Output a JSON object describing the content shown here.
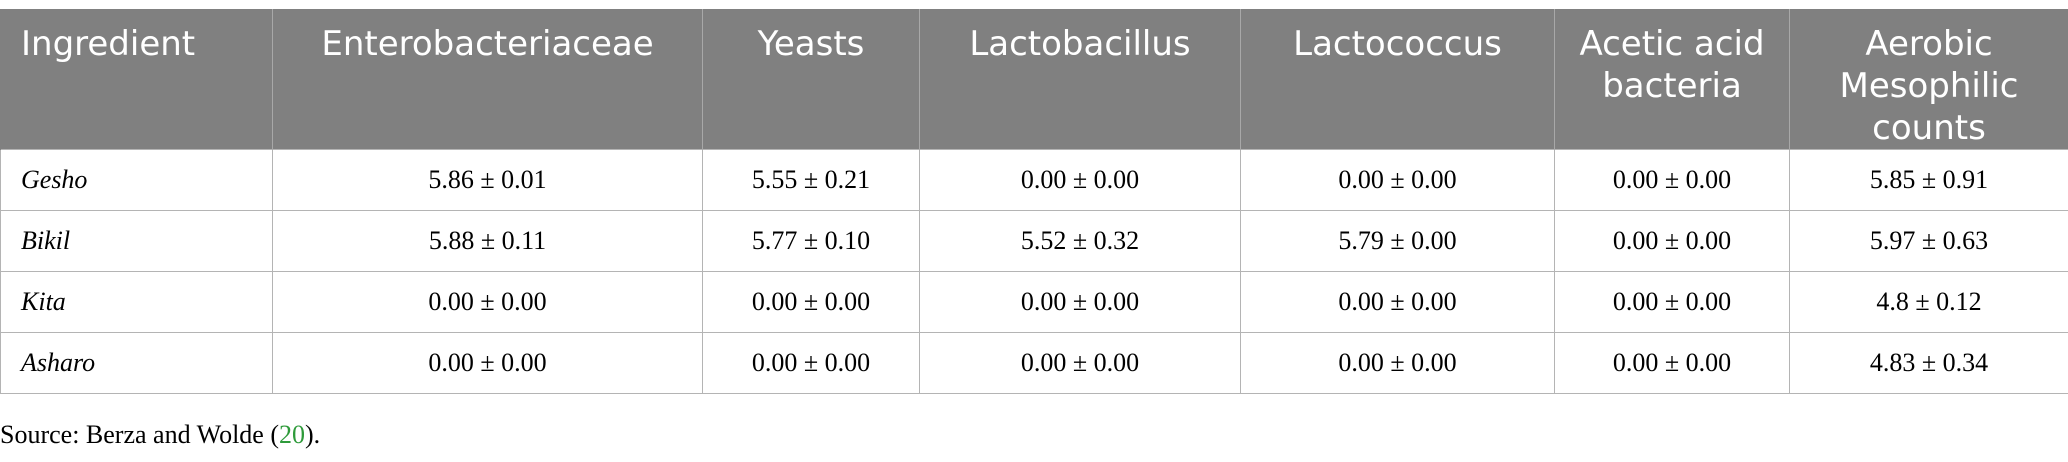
{
  "table": {
    "headers": [
      "Ingredient",
      "Enterobacteriaceae",
      "Yeasts",
      "Lactobacillus",
      "Lactococcus",
      "Acetic acid bacteria",
      "Aerobic Mesophilic counts"
    ],
    "rows": [
      [
        "Gesho",
        "5.86 ± 0.01",
        "5.55 ± 0.21",
        "0.00 ± 0.00",
        "0.00 ± 0.00",
        "0.00 ± 0.00",
        "5.85 ± 0.91"
      ],
      [
        "Bikil",
        "5.88 ± 0.11",
        "5.77 ± 0.10",
        "5.52 ± 0.32",
        "5.79 ± 0.00",
        "0.00 ± 0.00",
        "5.97 ± 0.63"
      ],
      [
        "Kita",
        "0.00 ± 0.00",
        "0.00 ± 0.00",
        "0.00 ± 0.00",
        "0.00 ± 0.00",
        "0.00 ± 0.00",
        "4.8 ± 0.12"
      ],
      [
        "Asharo",
        "0.00 ± 0.00",
        "0.00 ± 0.00",
        "0.00 ± 0.00",
        "0.00 ± 0.00",
        "0.00 ± 0.00",
        "4.83 ± 0.34"
      ]
    ]
  },
  "source": {
    "prefix": "Source: Berza and Wolde (",
    "ref": "20",
    "suffix": ")."
  },
  "colors": {
    "header_bg": "#808080",
    "header_text": "#ffffff",
    "link": "#2e9a3a"
  }
}
